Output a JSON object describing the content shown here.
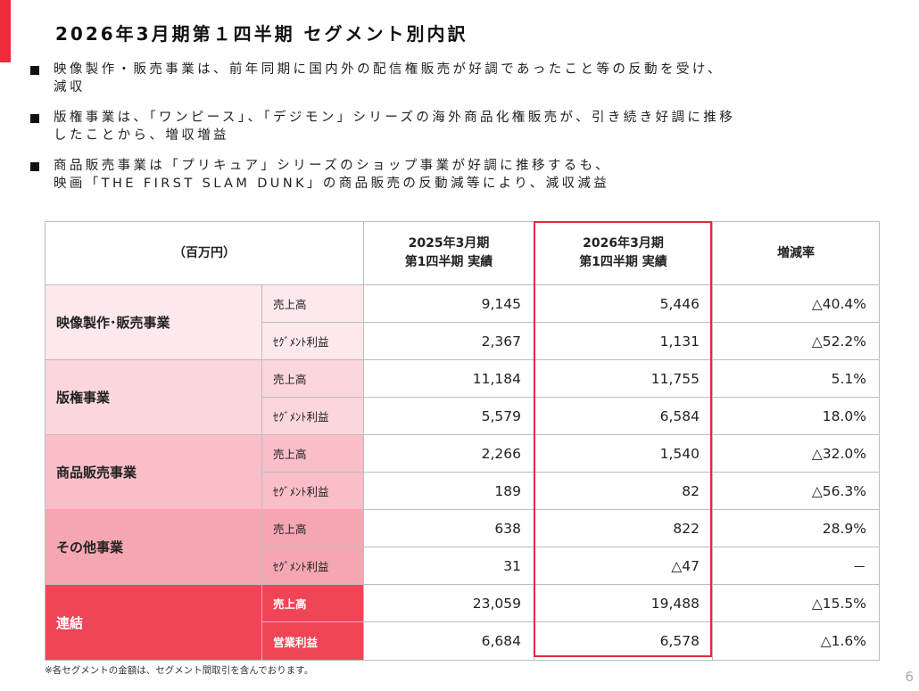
{
  "title": "2026年3月期第１四半期 セグメント別内訳",
  "bullets": [
    [
      "映像製作・販売事業は、前年同期に国内外の配信権販売が好調であったこと等の反動を受け、",
      "減収"
    ],
    [
      "版権事業は、「ワンピース」、「デジモン」シリーズの海外商品化権販売が、引き続き好調に推移",
      "したことから、増収増益"
    ],
    [
      "商品販売事業は「プリキュア」シリーズのショップ事業が好調に推移するも、",
      "映画「THE FIRST SLAM DUNK」の商品販売の反動減等により、減収減益"
    ]
  ],
  "table": {
    "unit": "（百万円）",
    "col_prev": [
      "2025年3月期",
      "第1四半期 実績"
    ],
    "col_curr": [
      "2026年3月期",
      "第1四半期 実績"
    ],
    "col_rate": "増減率",
    "segments": [
      {
        "name": "映像製作･販売事業",
        "rows": [
          {
            "metric": "売上高",
            "prev": "9,145",
            "curr": "5,446",
            "rate": "△40.4%"
          },
          {
            "metric": "ｾｸﾞﾒﾝﾄ利益",
            "prev": "2,367",
            "curr": "1,131",
            "rate": "△52.2%"
          }
        ]
      },
      {
        "name": "版権事業",
        "rows": [
          {
            "metric": "売上高",
            "prev": "11,184",
            "curr": "11,755",
            "rate": "5.1%"
          },
          {
            "metric": "ｾｸﾞﾒﾝﾄ利益",
            "prev": "5,579",
            "curr": "6,584",
            "rate": "18.0%"
          }
        ]
      },
      {
        "name": "商品販売事業",
        "rows": [
          {
            "metric": "売上高",
            "prev": "2,266",
            "curr": "1,540",
            "rate": "△32.0%"
          },
          {
            "metric": "ｾｸﾞﾒﾝﾄ利益",
            "prev": "189",
            "curr": "82",
            "rate": "△56.3%"
          }
        ]
      },
      {
        "name": "その他事業",
        "rows": [
          {
            "metric": "売上高",
            "prev": "638",
            "curr": "822",
            "rate": "28.9%"
          },
          {
            "metric": "ｾｸﾞﾒﾝﾄ利益",
            "prev": "31",
            "curr": "△47",
            "rate": "－"
          }
        ]
      },
      {
        "name": "連結",
        "rows": [
          {
            "metric": "売上高",
            "prev": "23,059",
            "curr": "19,488",
            "rate": "△15.5%"
          },
          {
            "metric": "営業利益",
            "prev": "6,684",
            "curr": "6,578",
            "rate": "△1.6%"
          }
        ]
      }
    ]
  },
  "footnote": "※各セグメントの金額は、セグメント間取引を含んでおります。",
  "page_number": "6",
  "colors": {
    "accent": "#ee2b3a",
    "highlight_border": "#e5283a",
    "segment_bg": [
      "#fde9ec",
      "#fbd6dc",
      "#f9bec7",
      "#f4a7b2",
      "#ef4557"
    ]
  }
}
